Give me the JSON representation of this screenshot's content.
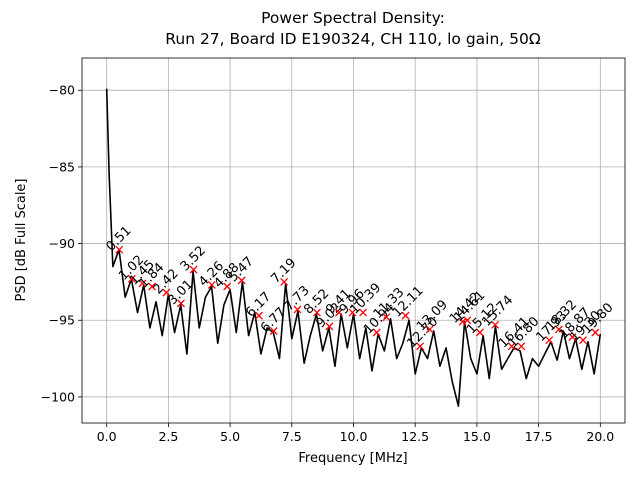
{
  "chart_data": {
    "type": "line",
    "title": "Power Spectral Density:",
    "subtitle": "Run 27, Board ID E190324, CH 110, lo gain, 50Ω",
    "x_label": "Frequency [MHz]",
    "y_label": "PSD [dB Full Scale]",
    "x": [
      0,
      0.1,
      0.25,
      0.5,
      0.75,
      1.0,
      1.25,
      1.5,
      1.75,
      2.0,
      2.25,
      2.5,
      2.75,
      3.0,
      3.25,
      3.5,
      3.75,
      4.0,
      4.25,
      4.5,
      4.75,
      5.0,
      5.25,
      5.5,
      5.75,
      6.0,
      6.25,
      6.5,
      6.75,
      7.0,
      7.25,
      7.5,
      7.75,
      8.0,
      8.25,
      8.5,
      8.75,
      9.0,
      9.25,
      9.5,
      9.75,
      10.0,
      10.25,
      10.5,
      10.75,
      11.0,
      11.25,
      11.5,
      11.75,
      12.0,
      12.25,
      12.5,
      12.75,
      13.0,
      13.25,
      13.5,
      13.75,
      14.0,
      14.25,
      14.5,
      14.75,
      15.0,
      15.25,
      15.5,
      15.75,
      16.0,
      16.25,
      16.5,
      16.75,
      17.0,
      17.25,
      17.5,
      17.75,
      18.0,
      18.25,
      18.5,
      18.75,
      19.0,
      19.25,
      19.5,
      19.75,
      20.0
    ],
    "series": [
      {
        "name": "PSD",
        "color": "#000000",
        "values": [
          -79.9,
          -85.5,
          -91.5,
          -90.4,
          -93.5,
          -92.3,
          -94.5,
          -92.7,
          -95.5,
          -93.8,
          -96.0,
          -93.3,
          -95.8,
          -94.0,
          -97.2,
          -91.8,
          -95.5,
          -93.5,
          -92.8,
          -96.5,
          -94.0,
          -93.0,
          -95.8,
          -92.5,
          -96.0,
          -94.5,
          -97.2,
          -95.5,
          -95.8,
          -97.5,
          -92.6,
          -96.2,
          -94.4,
          -97.8,
          -96.0,
          -94.6,
          -97.0,
          -95.5,
          -98.0,
          -94.6,
          -96.8,
          -94.6,
          -97.5,
          -95.5,
          -98.3,
          -95.9,
          -97.0,
          -94.9,
          -97.5,
          -96.5,
          -95.0,
          -98.5,
          -96.8,
          -97.5,
          -95.7,
          -98.0,
          -96.8,
          -99.0,
          -100.6,
          -95.1,
          -97.5,
          -98.5,
          -96.0,
          -98.8,
          -95.4,
          -98.2,
          -97.5,
          -96.8,
          -97.0,
          -98.8,
          -97.5,
          -98.0,
          -97.2,
          -96.4,
          -97.6,
          -95.7,
          -97.5,
          -96.2,
          -98.2,
          -96.4,
          -98.5,
          -95.9
        ]
      }
    ],
    "peaks": {
      "color": "#ff0000",
      "x": [
        0.51,
        1.02,
        1.45,
        1.84,
        2.42,
        3.01,
        3.52,
        4.26,
        4.88,
        5.47,
        6.17,
        6.77,
        7.19,
        7.73,
        8.52,
        9.02,
        9.41,
        9.96,
        10.39,
        10.94,
        11.33,
        12.11,
        12.7,
        13.09,
        14.42,
        14.61,
        15.12,
        15.74,
        16.41,
        16.8,
        17.93,
        18.32,
        18.87,
        19.3,
        19.8
      ],
      "values": [
        -90.4,
        -92.3,
        -92.6,
        -92.8,
        -93.2,
        -93.9,
        -91.7,
        -92.7,
        -92.8,
        -92.4,
        -94.7,
        -95.7,
        -92.5,
        -94.3,
        -94.5,
        -95.4,
        -94.5,
        -94.5,
        -94.5,
        -95.8,
        -94.8,
        -94.7,
        -96.7,
        -95.6,
        -95.1,
        -95.0,
        -95.8,
        -95.3,
        -96.7,
        -96.7,
        -96.3,
        -95.6,
        -96.1,
        -96.3,
        -95.8
      ],
      "labels": [
        "0.51",
        "1.02",
        "1.45",
        "1.84",
        "2.42",
        "3.01",
        "3.52",
        "4.26",
        "4.88",
        "5.47",
        "6.17",
        "6.77",
        "7.19",
        "7.73",
        "8.52",
        "9.02",
        "9.41",
        "9.96",
        "10.39",
        "10.94",
        "11.33",
        "12.11",
        "12.70",
        "13.09",
        "14.42",
        "14.61",
        "15.12",
        "15.74",
        "16.41",
        "16.80",
        "17.93",
        "18.32",
        "18.87",
        "19.30",
        "19.80"
      ]
    },
    "xlim": [
      -1,
      21
    ],
    "ylim": [
      -101.7,
      -77.9
    ],
    "xticks": [
      {
        "value": 0,
        "label": "0.0"
      },
      {
        "value": 2.5,
        "label": "2.5"
      },
      {
        "value": 5,
        "label": "5.0"
      },
      {
        "value": 7.5,
        "label": "7.5"
      },
      {
        "value": 10,
        "label": "10.0"
      },
      {
        "value": 12.5,
        "label": "12.5"
      },
      {
        "value": 15,
        "label": "15.0"
      },
      {
        "value": 17.5,
        "label": "17.5"
      },
      {
        "value": 20,
        "label": "20.0"
      }
    ],
    "yticks": [
      {
        "value": -80,
        "label": "−80"
      },
      {
        "value": -85,
        "label": "−85"
      },
      {
        "value": -90,
        "label": "−90"
      },
      {
        "value": -95,
        "label": "−95"
      },
      {
        "value": -100,
        "label": "−100"
      }
    ],
    "grid": true
  }
}
